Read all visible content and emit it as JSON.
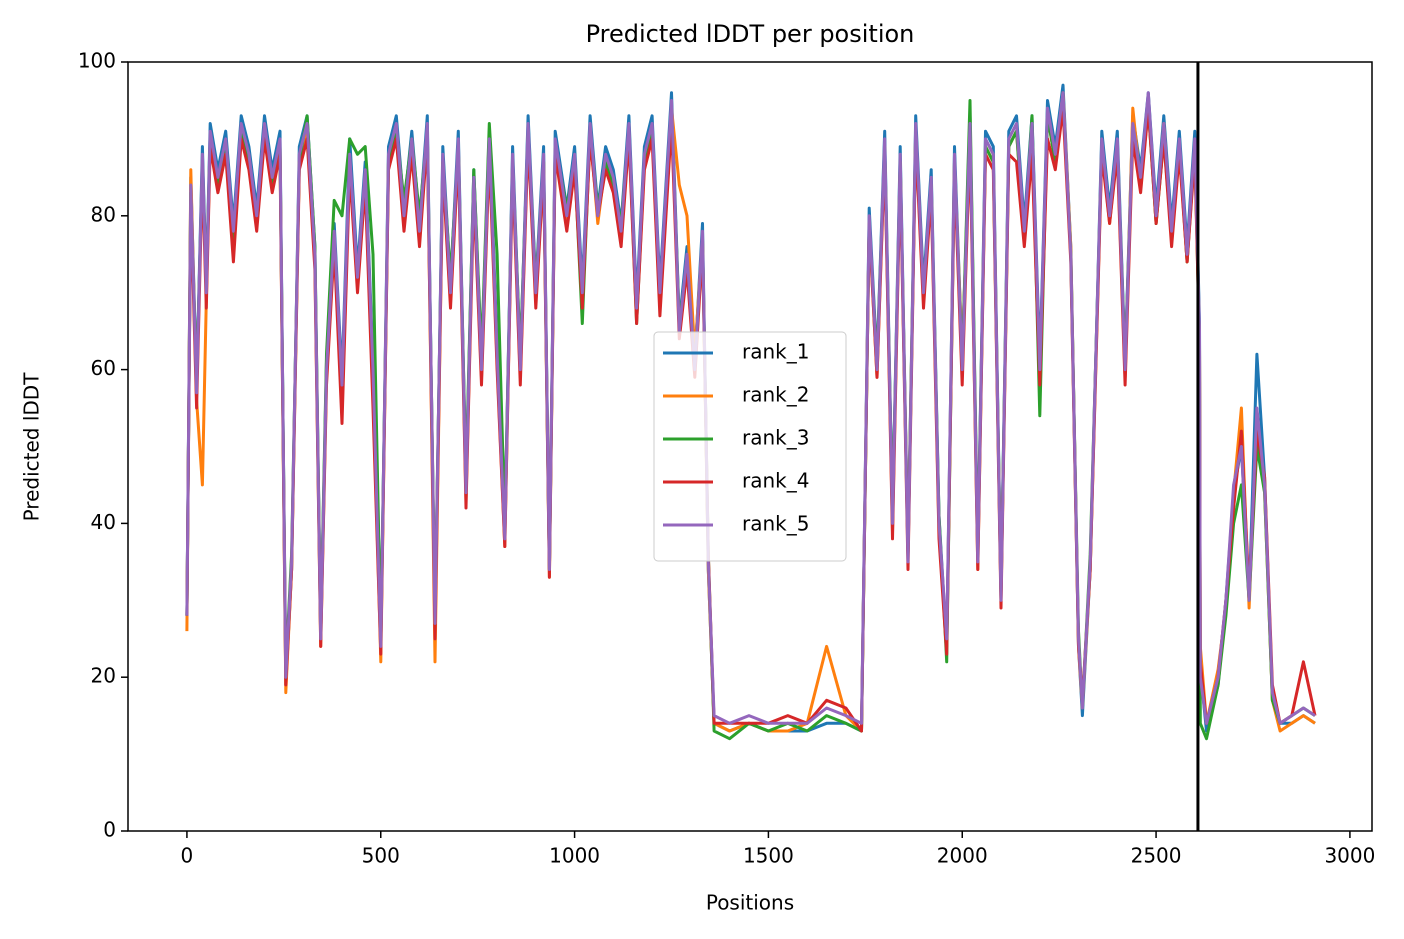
{
  "chart_data": {
    "type": "line",
    "title": "Predicted lDDT per position",
    "xlabel": "Positions",
    "ylabel": "Predicted lDDT",
    "x": [
      0,
      10,
      25,
      40,
      50,
      60,
      80,
      100,
      120,
      140,
      160,
      180,
      200,
      220,
      240,
      255,
      270,
      290,
      310,
      330,
      345,
      360,
      380,
      400,
      420,
      440,
      460,
      480,
      500,
      520,
      540,
      560,
      580,
      600,
      620,
      640,
      660,
      680,
      700,
      720,
      740,
      760,
      780,
      800,
      820,
      840,
      860,
      880,
      900,
      920,
      935,
      950,
      980,
      1000,
      1020,
      1040,
      1060,
      1080,
      1100,
      1120,
      1140,
      1160,
      1180,
      1200,
      1220,
      1250,
      1270,
      1290,
      1310,
      1330,
      1345,
      1360,
      1400,
      1450,
      1500,
      1550,
      1600,
      1650,
      1700,
      1740,
      1760,
      1780,
      1800,
      1820,
      1840,
      1860,
      1880,
      1900,
      1920,
      1940,
      1960,
      1980,
      2000,
      2020,
      2040,
      2060,
      2080,
      2100,
      2120,
      2140,
      2160,
      2180,
      2200,
      2220,
      2240,
      2260,
      2280,
      2300,
      2310,
      2330,
      2360,
      2380,
      2400,
      2420,
      2440,
      2460,
      2480,
      2500,
      2520,
      2540,
      2560,
      2580,
      2600,
      2612,
      2614,
      2630,
      2660,
      2680,
      2700,
      2720,
      2740,
      2760,
      2780,
      2800,
      2820,
      2850,
      2880,
      2910
    ],
    "series": [
      {
        "name": "rank_1",
        "color": "#1f77b4",
        "values": [
          28,
          85,
          58,
          89,
          71,
          92,
          86,
          91,
          79,
          93,
          89,
          81,
          93,
          86,
          91,
          19,
          34,
          89,
          93,
          76,
          25,
          61,
          79,
          59,
          90,
          73,
          87,
          61,
          24,
          89,
          93,
          81,
          91,
          79,
          93,
          26,
          89,
          71,
          91,
          45,
          86,
          61,
          91,
          63,
          39,
          89,
          61,
          93,
          71,
          89,
          34,
          91,
          81,
          89,
          71,
          93,
          81,
          89,
          86,
          79,
          93,
          69,
          89,
          93,
          71,
          96,
          66,
          76,
          61,
          79,
          34,
          14,
          13,
          14,
          13,
          13,
          13,
          14,
          14,
          13,
          81,
          61,
          91,
          41,
          89,
          36,
          93,
          71,
          86,
          41,
          24,
          89,
          61,
          93,
          36,
          91,
          89,
          31,
          91,
          93,
          79,
          93,
          61,
          95,
          89,
          97,
          76,
          24,
          15,
          34,
          91,
          81,
          91,
          61,
          93,
          86,
          96,
          81,
          93,
          79,
          91,
          76,
          91,
          66,
          21,
          13,
          19,
          30,
          44,
          50,
          30,
          62,
          46,
          17,
          14,
          14,
          15,
          14
        ]
      },
      {
        "name": "rank_2",
        "color": "#ff7f0e",
        "values": [
          26,
          86,
          56,
          45,
          69,
          90,
          84,
          89,
          77,
          91,
          87,
          79,
          91,
          84,
          89,
          18,
          34,
          87,
          91,
          74,
          24,
          59,
          77,
          57,
          87,
          71,
          85,
          59,
          22,
          87,
          91,
          79,
          89,
          77,
          91,
          22,
          87,
          69,
          89,
          43,
          84,
          59,
          89,
          61,
          37,
          87,
          59,
          91,
          69,
          87,
          33,
          89,
          79,
          87,
          69,
          91,
          79,
          87,
          84,
          77,
          91,
          67,
          87,
          91,
          69,
          94,
          84,
          80,
          62,
          77,
          34,
          14,
          13,
          14,
          13,
          13,
          14,
          24,
          15,
          13,
          79,
          59,
          89,
          39,
          87,
          36,
          91,
          69,
          84,
          39,
          24,
          87,
          62,
          91,
          34,
          89,
          87,
          30,
          89,
          91,
          77,
          91,
          59,
          93,
          87,
          96,
          76,
          24,
          16,
          34,
          89,
          79,
          89,
          59,
          94,
          84,
          95,
          79,
          92,
          77,
          89,
          74,
          89,
          64,
          24,
          14,
          21,
          29,
          44,
          55,
          29,
          54,
          44,
          17,
          13,
          14,
          15,
          14
        ]
      },
      {
        "name": "rank_3",
        "color": "#2ca02c",
        "values": [
          28,
          83,
          58,
          87,
          71,
          90,
          84,
          89,
          76,
          91,
          87,
          79,
          91,
          84,
          89,
          21,
          36,
          87,
          93,
          76,
          26,
          62,
          82,
          80,
          90,
          88,
          89,
          75,
          25,
          87,
          91,
          82,
          90,
          80,
          91,
          28,
          87,
          72,
          89,
          46,
          86,
          62,
          92,
          75,
          40,
          87,
          62,
          91,
          71,
          87,
          34,
          89,
          81,
          87,
          66,
          91,
          81,
          87,
          84,
          79,
          91,
          66,
          87,
          91,
          69,
          94,
          66,
          74,
          60,
          77,
          36,
          13,
          12,
          14,
          13,
          14,
          13,
          15,
          14,
          13,
          79,
          61,
          89,
          41,
          87,
          36,
          91,
          70,
          84,
          41,
          22,
          87,
          61,
          95,
          36,
          89,
          87,
          31,
          89,
          91,
          77,
          93,
          54,
          93,
          87,
          95,
          75,
          26,
          16,
          36,
          89,
          80,
          89,
          61,
          91,
          84,
          94,
          79,
          90,
          77,
          89,
          74,
          89,
          63,
          14,
          12,
          19,
          28,
          40,
          45,
          30,
          50,
          44,
          17,
          14,
          15,
          16,
          15
        ]
      },
      {
        "name": "rank_4",
        "color": "#d62728",
        "values": [
          28,
          82,
          55,
          86,
          68,
          89,
          83,
          88,
          74,
          90,
          86,
          78,
          90,
          83,
          88,
          19,
          34,
          86,
          90,
          73,
          24,
          58,
          76,
          53,
          86,
          70,
          84,
          55,
          23,
          86,
          90,
          78,
          88,
          76,
          90,
          25,
          86,
          68,
          88,
          42,
          83,
          58,
          88,
          60,
          37,
          86,
          58,
          90,
          68,
          86,
          33,
          88,
          78,
          86,
          68,
          90,
          80,
          86,
          83,
          76,
          90,
          66,
          86,
          90,
          67,
          92,
          64,
          73,
          59,
          76,
          36,
          14,
          14,
          14,
          14,
          15,
          14,
          17,
          16,
          13,
          79,
          59,
          88,
          38,
          86,
          34,
          90,
          68,
          83,
          38,
          23,
          86,
          58,
          90,
          34,
          88,
          86,
          29,
          88,
          87,
          76,
          88,
          58,
          90,
          86,
          94,
          74,
          24,
          17,
          34,
          88,
          79,
          88,
          58,
          90,
          83,
          94,
          79,
          90,
          76,
          88,
          74,
          88,
          63,
          22,
          14,
          20,
          30,
          42,
          52,
          31,
          52,
          46,
          19,
          14,
          15,
          22,
          15
        ]
      },
      {
        "name": "rank_5",
        "color": "#9467bd",
        "values": [
          28,
          84,
          57,
          88,
          70,
          91,
          85,
          90,
          78,
          92,
          88,
          80,
          92,
          85,
          90,
          20,
          35,
          88,
          92,
          75,
          25,
          60,
          78,
          58,
          88,
          72,
          86,
          60,
          24,
          88,
          92,
          80,
          90,
          78,
          92,
          27,
          88,
          70,
          90,
          44,
          85,
          60,
          90,
          62,
          38,
          88,
          60,
          92,
          70,
          88,
          34,
          90,
          80,
          88,
          70,
          92,
          80,
          88,
          85,
          78,
          92,
          68,
          88,
          92,
          70,
          95,
          65,
          75,
          60,
          78,
          35,
          15,
          14,
          15,
          14,
          14,
          14,
          16,
          15,
          14,
          80,
          60,
          90,
          40,
          88,
          35,
          92,
          70,
          85,
          40,
          25,
          88,
          60,
          92,
          35,
          90,
          88,
          30,
          90,
          92,
          78,
          92,
          60,
          94,
          88,
          96,
          75,
          25,
          16,
          35,
          90,
          80,
          90,
          60,
          92,
          85,
          96,
          80,
          92,
          78,
          90,
          75,
          90,
          65,
          20,
          14,
          20,
          30,
          45,
          50,
          30,
          55,
          45,
          18,
          14,
          15,
          16,
          15
        ]
      }
    ],
    "vline": 2608,
    "vline_color": "#000000",
    "xlim": [
      -152,
      3057
    ],
    "xticks": [
      0,
      500,
      1000,
      1500,
      2000,
      2500,
      3000
    ],
    "ylim": [
      0,
      100
    ],
    "yticks": [
      0,
      20,
      40,
      60,
      80,
      100
    ],
    "legend": "center"
  }
}
